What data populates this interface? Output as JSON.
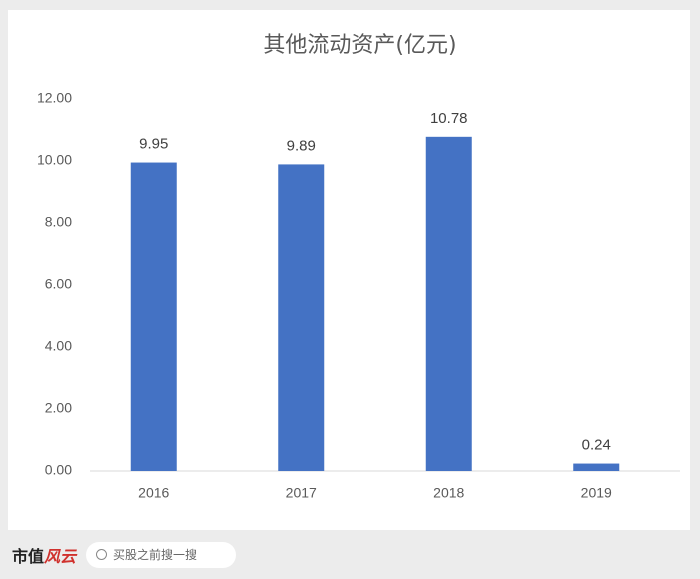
{
  "chart_data": {
    "type": "bar",
    "title": "其他流动资产(亿元)",
    "categories": [
      "2016",
      "2017",
      "2018",
      "2019"
    ],
    "values": [
      9.95,
      9.89,
      10.78,
      0.24
    ],
    "color": "#4472c4",
    "ylim": [
      0,
      12
    ],
    "yticks": [
      {
        "value": 0,
        "label": "0.00"
      },
      {
        "value": 2,
        "label": "2.00"
      },
      {
        "value": 4,
        "label": "4.00"
      },
      {
        "value": 6,
        "label": "6.00"
      },
      {
        "value": 8,
        "label": "8.00"
      },
      {
        "value": 10,
        "label": "10.00"
      },
      {
        "value": 12,
        "label": "12.00"
      }
    ],
    "grid": false
  },
  "footer": {
    "brand_a": "市值",
    "brand_b": "风云",
    "search": "买股之前搜一搜"
  }
}
